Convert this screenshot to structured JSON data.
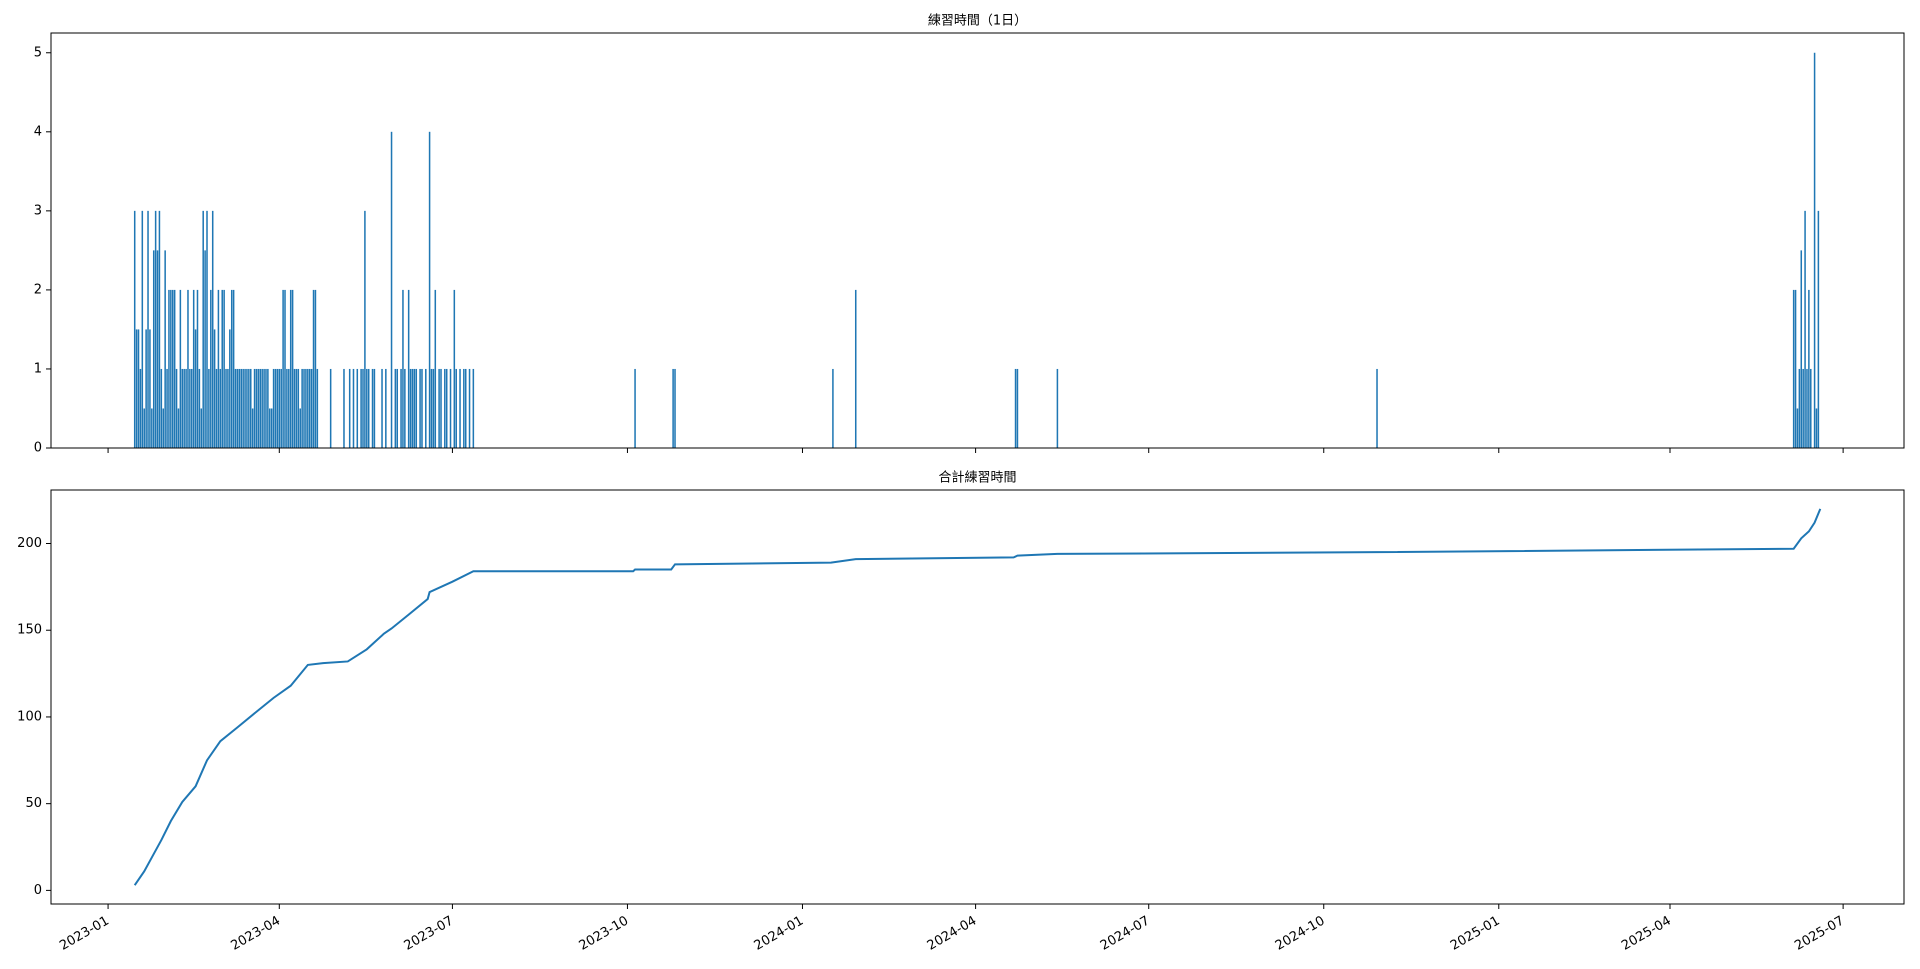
{
  "chart_data": [
    {
      "type": "bar",
      "title": "練習時間（1日）",
      "color": "#1f77b4",
      "xlim": [
        "2022-12-02",
        "2025-08-02"
      ],
      "xticks": [
        "2023-01",
        "2023-04",
        "2023-07",
        "2023-10",
        "2024-01",
        "2024-04",
        "2024-07",
        "2024-10",
        "2025-01",
        "2025-04",
        "2025-07"
      ],
      "ylim": [
        0,
        5.25
      ],
      "yticks": [
        0,
        1,
        2,
        3,
        4,
        5
      ],
      "x": [
        "2023-01-15",
        "2023-01-16",
        "2023-01-17",
        "2023-01-18",
        "2023-01-19",
        "2023-01-20",
        "2023-01-21",
        "2023-01-22",
        "2023-01-23",
        "2023-01-24",
        "2023-01-25",
        "2023-01-26",
        "2023-01-27",
        "2023-01-28",
        "2023-01-29",
        "2023-01-30",
        "2023-01-31",
        "2023-02-01",
        "2023-02-02",
        "2023-02-03",
        "2023-02-04",
        "2023-02-05",
        "2023-02-06",
        "2023-02-07",
        "2023-02-08",
        "2023-02-09",
        "2023-02-10",
        "2023-02-11",
        "2023-02-12",
        "2023-02-13",
        "2023-02-14",
        "2023-02-15",
        "2023-02-16",
        "2023-02-17",
        "2023-02-18",
        "2023-02-19",
        "2023-02-20",
        "2023-02-21",
        "2023-02-22",
        "2023-02-23",
        "2023-02-24",
        "2023-02-25",
        "2023-02-26",
        "2023-02-27",
        "2023-02-28",
        "2023-03-01",
        "2023-03-02",
        "2023-03-03",
        "2023-03-04",
        "2023-03-05",
        "2023-03-06",
        "2023-03-07",
        "2023-03-08",
        "2023-03-09",
        "2023-03-10",
        "2023-03-11",
        "2023-03-12",
        "2023-03-13",
        "2023-03-14",
        "2023-03-15",
        "2023-03-16",
        "2023-03-17",
        "2023-03-18",
        "2023-03-19",
        "2023-03-20",
        "2023-03-21",
        "2023-03-22",
        "2023-03-23",
        "2023-03-24",
        "2023-03-25",
        "2023-03-26",
        "2023-03-27",
        "2023-03-28",
        "2023-03-29",
        "2023-03-30",
        "2023-03-31",
        "2023-04-01",
        "2023-04-02",
        "2023-04-03",
        "2023-04-04",
        "2023-04-05",
        "2023-04-06",
        "2023-04-07",
        "2023-04-08",
        "2023-04-09",
        "2023-04-10",
        "2023-04-11",
        "2023-04-12",
        "2023-04-13",
        "2023-04-14",
        "2023-04-15",
        "2023-04-16",
        "2023-04-17",
        "2023-04-18",
        "2023-04-19",
        "2023-04-20",
        "2023-04-21",
        "2023-04-28",
        "2023-05-05",
        "2023-05-08",
        "2023-05-10",
        "2023-05-12",
        "2023-05-14",
        "2023-05-15",
        "2023-05-16",
        "2023-05-17",
        "2023-05-18",
        "2023-05-20",
        "2023-05-21",
        "2023-05-25",
        "2023-05-27",
        "2023-05-30",
        "2023-06-01",
        "2023-06-02",
        "2023-06-04",
        "2023-06-05",
        "2023-06-06",
        "2023-06-08",
        "2023-06-09",
        "2023-06-10",
        "2023-06-11",
        "2023-06-12",
        "2023-06-14",
        "2023-06-15",
        "2023-06-17",
        "2023-06-19",
        "2023-06-20",
        "2023-06-21",
        "2023-06-22",
        "2023-06-24",
        "2023-06-25",
        "2023-06-27",
        "2023-06-28",
        "2023-06-30",
        "2023-07-02",
        "2023-07-03",
        "2023-07-05",
        "2023-07-07",
        "2023-07-08",
        "2023-07-10",
        "2023-07-12",
        "2023-10-05",
        "2023-10-25",
        "2023-10-26",
        "2024-01-17",
        "2024-01-29",
        "2024-04-22",
        "2024-04-23",
        "2024-05-14",
        "2024-10-29",
        "2025-06-05",
        "2025-06-06",
        "2025-06-07",
        "2025-06-08",
        "2025-06-09",
        "2025-06-10",
        "2025-06-11",
        "2025-06-12",
        "2025-06-13",
        "2025-06-14",
        "2025-06-16",
        "2025-06-17",
        "2025-06-18"
      ],
      "values": [
        3,
        1.5,
        1.5,
        1,
        3,
        0.5,
        1.5,
        3,
        1.5,
        0.5,
        2.5,
        3,
        2.5,
        3,
        1,
        0.5,
        2.5,
        1,
        2,
        2,
        2,
        2,
        1,
        0.5,
        2,
        1,
        1,
        1,
        2,
        1,
        1,
        2,
        1.5,
        2,
        1,
        0.5,
        3,
        2.5,
        3,
        1,
        2,
        3,
        1.5,
        1,
        2,
        1,
        2,
        2,
        1,
        1,
        1.5,
        2,
        2,
        1,
        1,
        1,
        1,
        1,
        1,
        1,
        1,
        1,
        0.5,
        1,
        1,
        1,
        1,
        1,
        1,
        1,
        1,
        0.5,
        0.5,
        1,
        1,
        1,
        1,
        1,
        2,
        2,
        1,
        1,
        2,
        2,
        1,
        1,
        1,
        0.5,
        1,
        1,
        1,
        1,
        1,
        1,
        2,
        2,
        1,
        1,
        1,
        1,
        1,
        1,
        1,
        1,
        3,
        1,
        1,
        1,
        1,
        1,
        1,
        4,
        1,
        1,
        1,
        2,
        1,
        2,
        1,
        1,
        1,
        1,
        1,
        1,
        1,
        4,
        1,
        1,
        2,
        1,
        1,
        1,
        1,
        1,
        2,
        1,
        1,
        1,
        1,
        1,
        1,
        1,
        1,
        1,
        1,
        2,
        1,
        1,
        1,
        1,
        2,
        2,
        0.5,
        1,
        2.5,
        1,
        3,
        1,
        2,
        1,
        5,
        0.5,
        3
      ]
    },
    {
      "type": "line",
      "title": "合計練習時間",
      "color": "#1f77b4",
      "xlim": [
        "2022-12-02",
        "2025-08-02"
      ],
      "xticks": [
        "2023-01",
        "2023-04",
        "2023-07",
        "2023-10",
        "2024-01",
        "2024-04",
        "2024-07",
        "2024-10",
        "2025-01",
        "2025-04",
        "2025-07"
      ],
      "ylim": [
        -7.85,
        230.85
      ],
      "yticks": [
        0,
        50,
        100,
        150,
        200
      ],
      "x": [
        "2023-01-15",
        "2023-01-20",
        "2023-01-24",
        "2023-01-29",
        "2023-02-03",
        "2023-02-09",
        "2023-02-16",
        "2023-02-22",
        "2023-03-01",
        "2023-03-10",
        "2023-03-20",
        "2023-03-29",
        "2023-04-07",
        "2023-04-16",
        "2023-04-24",
        "2023-05-07",
        "2023-05-17",
        "2023-05-26",
        "2023-05-30",
        "2023-06-08",
        "2023-06-18",
        "2023-06-19",
        "2023-07-01",
        "2023-07-12",
        "2023-10-04",
        "2023-10-05",
        "2023-10-24",
        "2023-10-26",
        "2024-01-16",
        "2024-01-29",
        "2024-04-21",
        "2024-04-23",
        "2024-05-14",
        "2024-10-29",
        "2025-06-05",
        "2025-06-09",
        "2025-06-13",
        "2025-06-16",
        "2025-06-19"
      ],
      "values": [
        3,
        11,
        19,
        29,
        40,
        51,
        60,
        75,
        86,
        94,
        103,
        111,
        118,
        130,
        131,
        132,
        139,
        148,
        151,
        159,
        168,
        172,
        178,
        184,
        184,
        185,
        185,
        188,
        189,
        191,
        192,
        193,
        194,
        195,
        197,
        203,
        207,
        212,
        220
      ]
    }
  ]
}
